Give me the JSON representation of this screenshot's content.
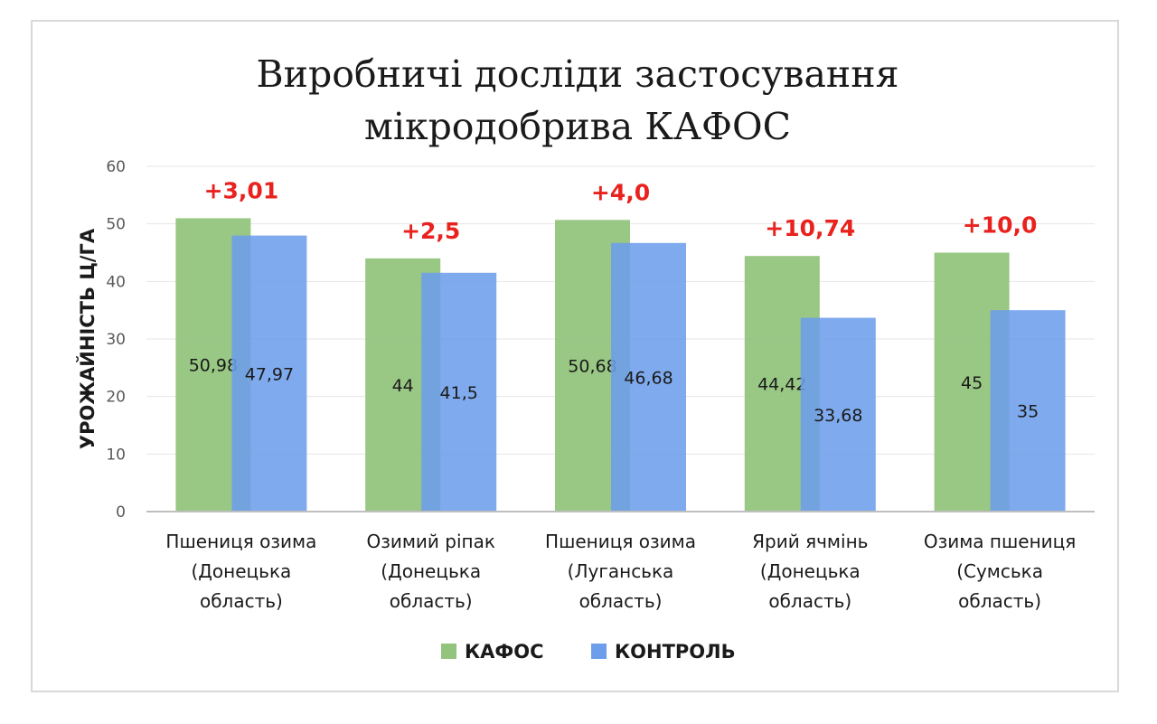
{
  "chart_data": {
    "type": "bar",
    "title_lines": [
      "Виробничі досліди застосування",
      "мікродобрива КАФОС"
    ],
    "ylabel": "УРОЖАЙНІСТЬ Ц/ГА",
    "xlabel": "",
    "ylim": [
      0,
      60
    ],
    "yticks": [
      0,
      10,
      20,
      30,
      40,
      50,
      60
    ],
    "grid": true,
    "legend_position": "bottom",
    "categories": [
      [
        "Пшениця озима",
        "(Донецька",
        "область)"
      ],
      [
        "Озимий ріпак",
        "(Донецька",
        "область)"
      ],
      [
        "Пшениця озима",
        "(Луганська",
        "область)"
      ],
      [
        "Ярий ячмінь",
        "(Донецька",
        "область)"
      ],
      [
        "Озима пшениця",
        "(Сумська",
        "область)"
      ]
    ],
    "series": [
      {
        "name": "КАФОС",
        "color": "#93c47d",
        "values": [
          50.98,
          44,
          50.68,
          44.42,
          45
        ],
        "labels": [
          "50,98",
          "44",
          "50,68",
          "44,42",
          "45"
        ]
      },
      {
        "name": "КОНТРОЛЬ",
        "color": "#6d9eeb",
        "values": [
          47.97,
          41.5,
          46.68,
          33.68,
          35
        ],
        "labels": [
          "47,97",
          "41,5",
          "46,68",
          "33,68",
          "35"
        ]
      }
    ],
    "annotations": [
      "+3,01",
      "+2,5",
      "+4,0",
      "+10,74",
      "+10,0"
    ],
    "annotation_color": "#e8231f"
  }
}
